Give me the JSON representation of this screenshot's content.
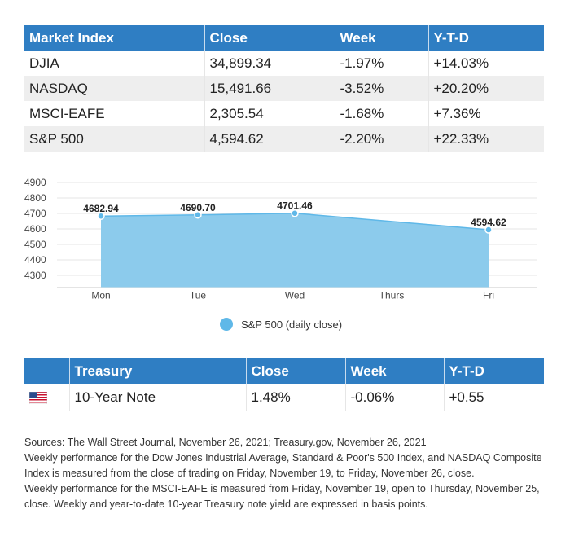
{
  "market_table": {
    "headers": [
      "Market Index",
      "Close",
      "Week",
      "Y-T-D"
    ],
    "rows": [
      [
        "DJIA",
        "34,899.34",
        "-1.97%",
        "+14.03%"
      ],
      [
        "NASDAQ",
        "15,491.66",
        "-3.52%",
        "+20.20%"
      ],
      [
        "MSCI-EAFE",
        "2,305.54",
        "-1.68%",
        "+7.36%"
      ],
      [
        "S&P 500",
        "4,594.62",
        "-2.20%",
        "+22.33%"
      ]
    ]
  },
  "chart_data": {
    "type": "area",
    "categories": [
      "Mon",
      "Tue",
      "Wed",
      "Thurs",
      "Fri"
    ],
    "series": [
      {
        "name": "S&P 500 (daily close)",
        "values": [
          4682.94,
          4690.7,
          4701.46,
          null,
          4594.62
        ]
      }
    ],
    "data_labels": [
      "4682.94",
      "4690.70",
      "4701.46",
      "",
      "4594.62"
    ],
    "yticks": [
      4300,
      4400,
      4500,
      4600,
      4700,
      4800,
      4900
    ],
    "ylim": [
      4250,
      4900
    ],
    "grid": true,
    "legend_position": "bottom",
    "colors": {
      "fill": "#8ccbec",
      "line": "#5fb8e8",
      "marker": "#5fb8e8"
    }
  },
  "treasury_table": {
    "headers": [
      "",
      "Treasury",
      "Close",
      "Week",
      "Y-T-D"
    ],
    "row": {
      "flag": "us-flag-icon",
      "name": "10-Year Note",
      "close": "1.48%",
      "week": "-0.06%",
      "ytd": "+0.55"
    }
  },
  "notes": {
    "sources": "Sources: The Wall Street Journal, November 26, 2021; Treasury.gov, November 26, 2021",
    "line1": "Weekly performance for the Dow Jones Industrial Average, Standard & Poor's 500 Index, and NASDAQ Composite Index is measured from the close of trading on Friday, November 19, to Friday, November 26, close.",
    "line2": "Weekly performance for the MSCI-EAFE is measured from Friday, November 19, open to Thursday, November 25, close. Weekly and year-to-date 10-year Treasury note yield are expressed in basis points."
  }
}
